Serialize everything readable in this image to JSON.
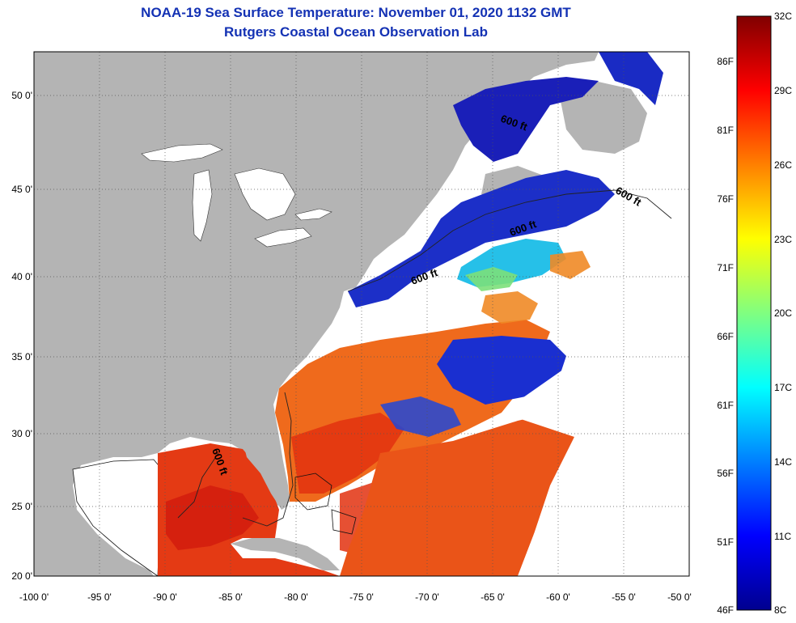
{
  "title": {
    "line1": "NOAA-19 Sea Surface Temperature:  November 01, 2020 1132 GMT",
    "line2": "Rutgers Coastal Ocean Observation Lab"
  },
  "map": {
    "lat_labels": [
      "50 0'",
      "45 0'",
      "40 0'",
      "35 0'",
      "30 0'",
      "25 0'",
      "20 0'"
    ],
    "lon_labels": [
      "-100 0'",
      "-95 0'",
      "-90 0'",
      "-85 0'",
      "-80 0'",
      "-75 0'",
      "-70 0'",
      "-65 0'",
      "-60 0'",
      "-55 0'",
      "-50 0'"
    ],
    "contour_labels": [
      "600 ft",
      "600 ft",
      "600 ft",
      "600 ft",
      "600 ft"
    ],
    "colors": {
      "land": "#b4b4b4",
      "cloud": "#ffffff",
      "grid": "#555555"
    }
  },
  "colorbar": {
    "fahrenheit": [
      "86F",
      "81F",
      "76F",
      "71F",
      "66F",
      "61F",
      "56F",
      "51F",
      "46F"
    ],
    "celsius": [
      "32C",
      "29C",
      "26C",
      "23C",
      "20C",
      "17C",
      "14C",
      "11C",
      "8C"
    ],
    "range_c": [
      8,
      32
    ],
    "colormap": "jet"
  }
}
